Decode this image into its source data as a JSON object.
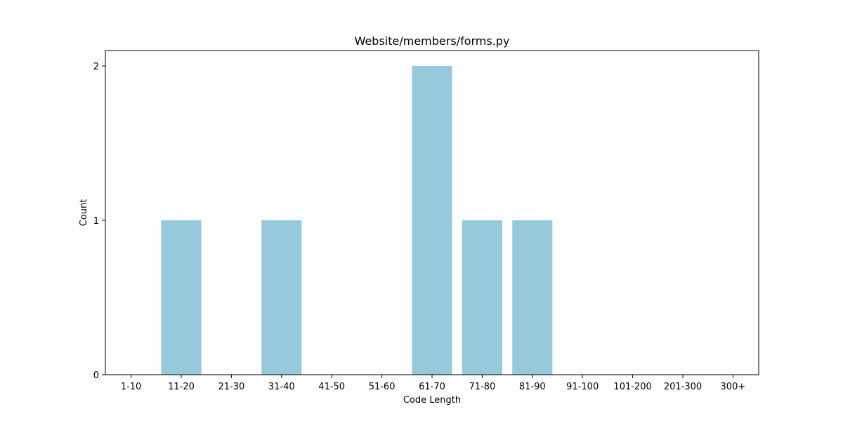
{
  "chart_data": {
    "type": "bar",
    "title": "Website/members/forms.py",
    "xlabel": "Code Length",
    "ylabel": "Count",
    "categories": [
      "1-10",
      "11-20",
      "21-30",
      "31-40",
      "41-50",
      "51-60",
      "61-70",
      "71-80",
      "81-90",
      "91-100",
      "101-200",
      "201-300",
      "300+"
    ],
    "values": [
      0,
      1,
      0,
      1,
      0,
      0,
      2,
      1,
      1,
      0,
      0,
      0,
      0
    ],
    "ylim": [
      0,
      2.1
    ],
    "yticks": [
      "0",
      "1",
      "2"
    ],
    "grid": false,
    "legend": "none",
    "bar_color": "#96c9dc"
  }
}
